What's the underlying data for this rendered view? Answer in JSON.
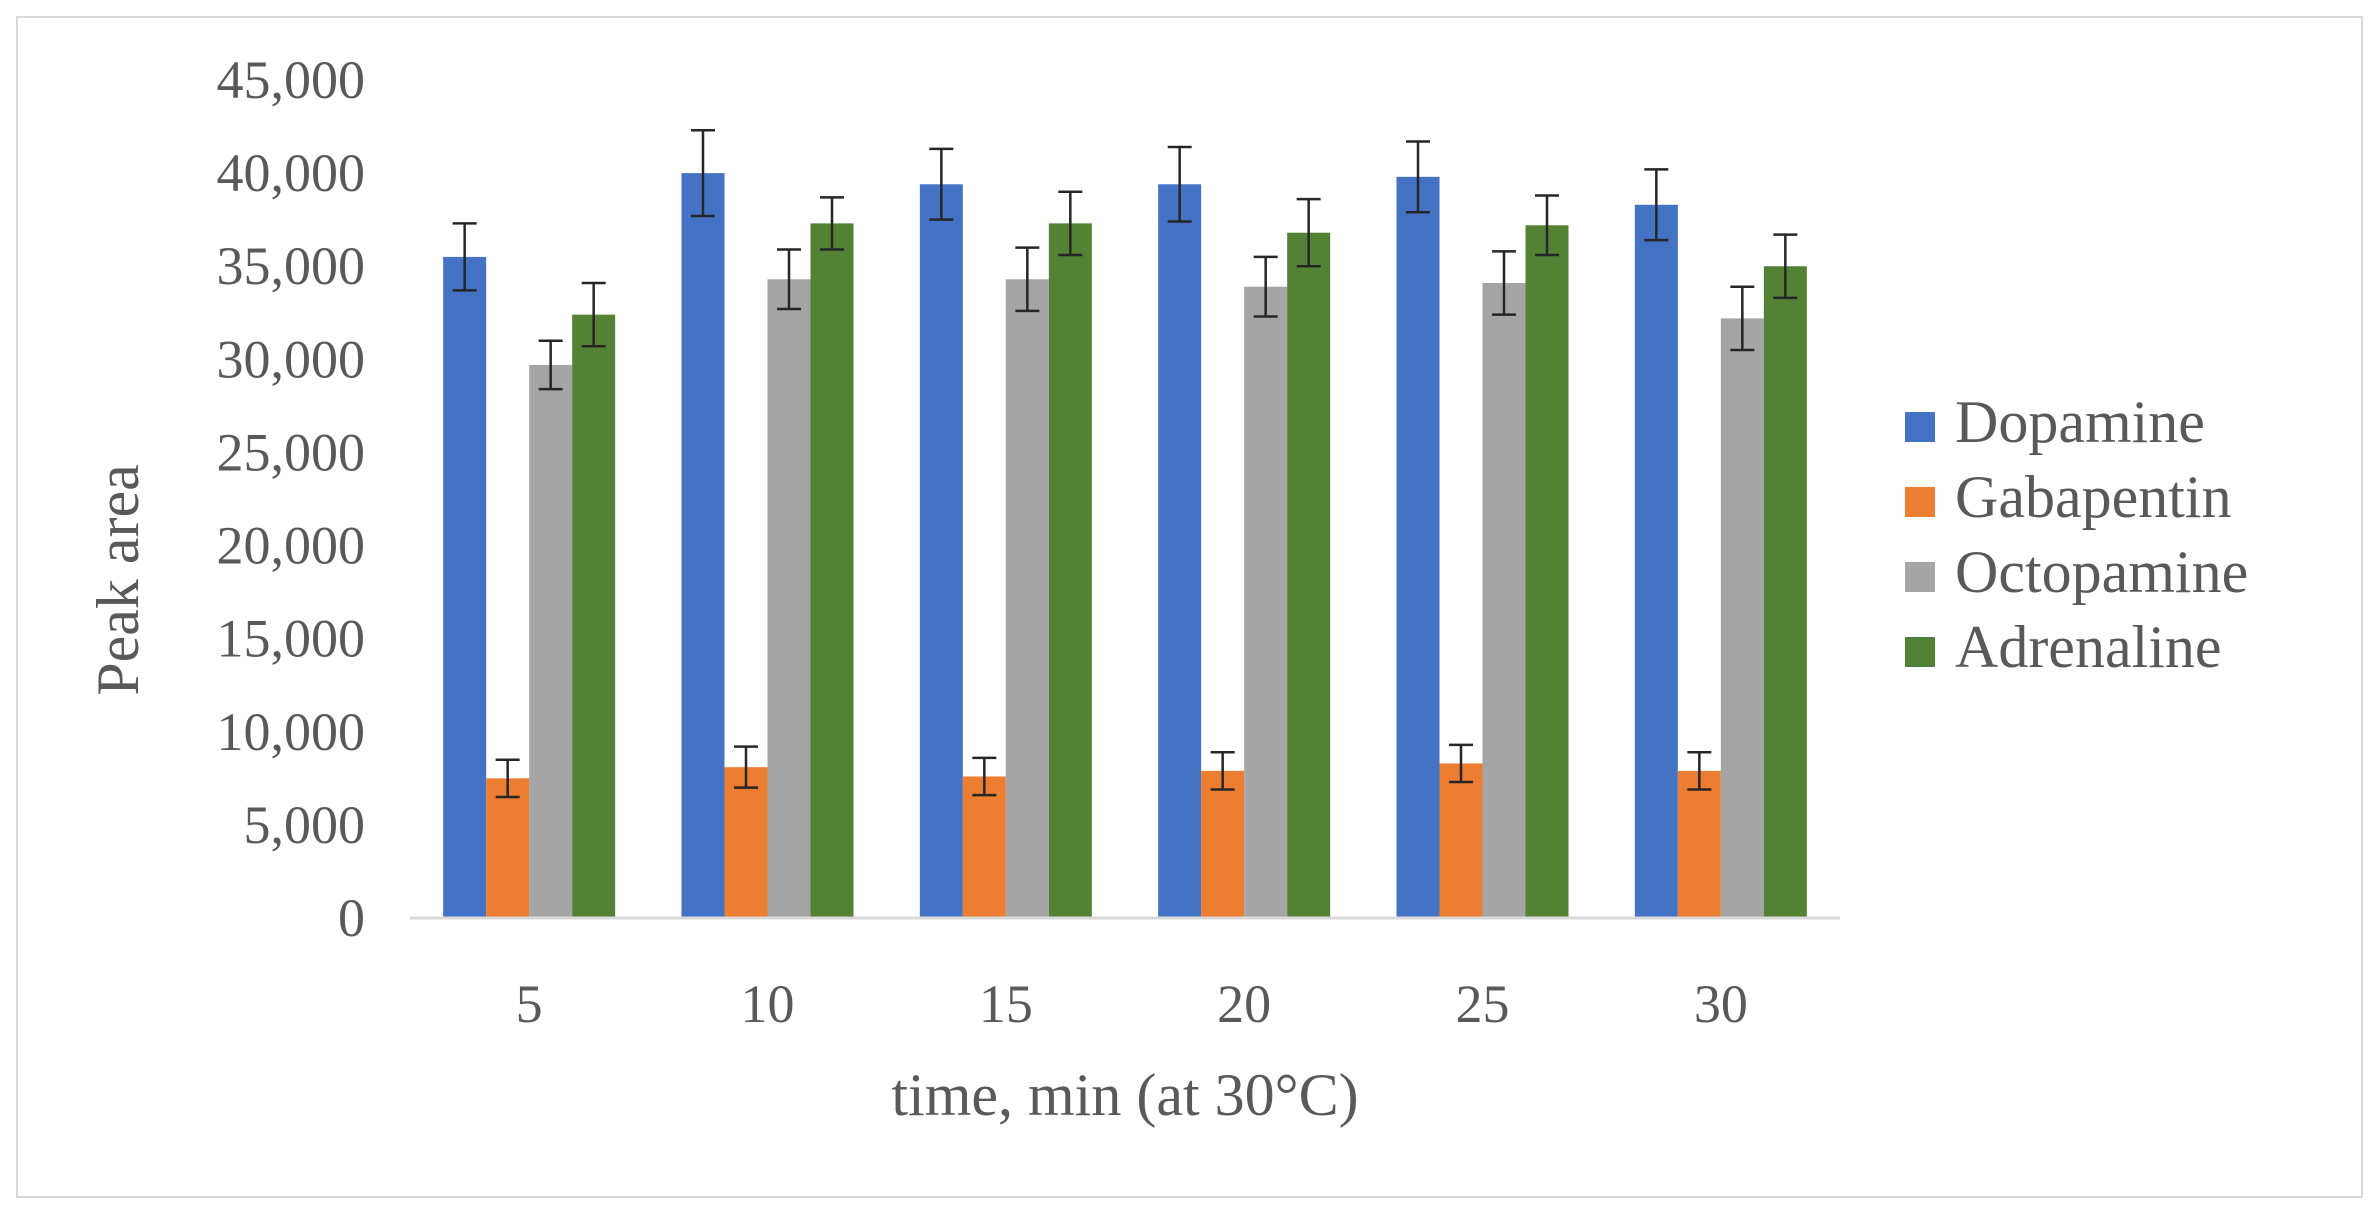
{
  "chart_data": {
    "type": "bar",
    "title": "",
    "xlabel": "time, min (at 30°C)",
    "ylabel": "Peak area",
    "categories": [
      "5",
      "10",
      "15",
      "20",
      "25",
      "30"
    ],
    "ylim": [
      0,
      45000
    ],
    "yticks": [
      0,
      5000,
      10000,
      15000,
      20000,
      25000,
      30000,
      35000,
      40000,
      45000
    ],
    "ytick_labels": [
      "0",
      "5,000",
      "10,000",
      "15,000",
      "20,000",
      "25,000",
      "30,000",
      "35,000",
      "40,000",
      "45,000"
    ],
    "grid": false,
    "legend_position": "right",
    "error_bars": true,
    "series": [
      {
        "name": "Dopamine",
        "color": "#4472c4",
        "values": [
          35500,
          40000,
          39400,
          39400,
          39800,
          38300
        ],
        "errors": [
          1800,
          2300,
          1900,
          2000,
          1900,
          1900
        ]
      },
      {
        "name": "Gabapentin",
        "color": "#ed7d31",
        "values": [
          7500,
          8100,
          7600,
          7900,
          8300,
          7900
        ],
        "errors": [
          1000,
          1100,
          1000,
          1000,
          1000,
          1000
        ]
      },
      {
        "name": "Octopamine",
        "color": "#a5a5a5",
        "values": [
          29700,
          34300,
          34300,
          33900,
          34100,
          32200
        ],
        "errors": [
          1300,
          1600,
          1700,
          1600,
          1700,
          1700
        ]
      },
      {
        "name": "Adrenaline",
        "color": "#548235",
        "values": [
          32400,
          37300,
          37300,
          36800,
          37200,
          35000
        ],
        "errors": [
          1700,
          1400,
          1700,
          1800,
          1600,
          1700
        ]
      }
    ]
  }
}
